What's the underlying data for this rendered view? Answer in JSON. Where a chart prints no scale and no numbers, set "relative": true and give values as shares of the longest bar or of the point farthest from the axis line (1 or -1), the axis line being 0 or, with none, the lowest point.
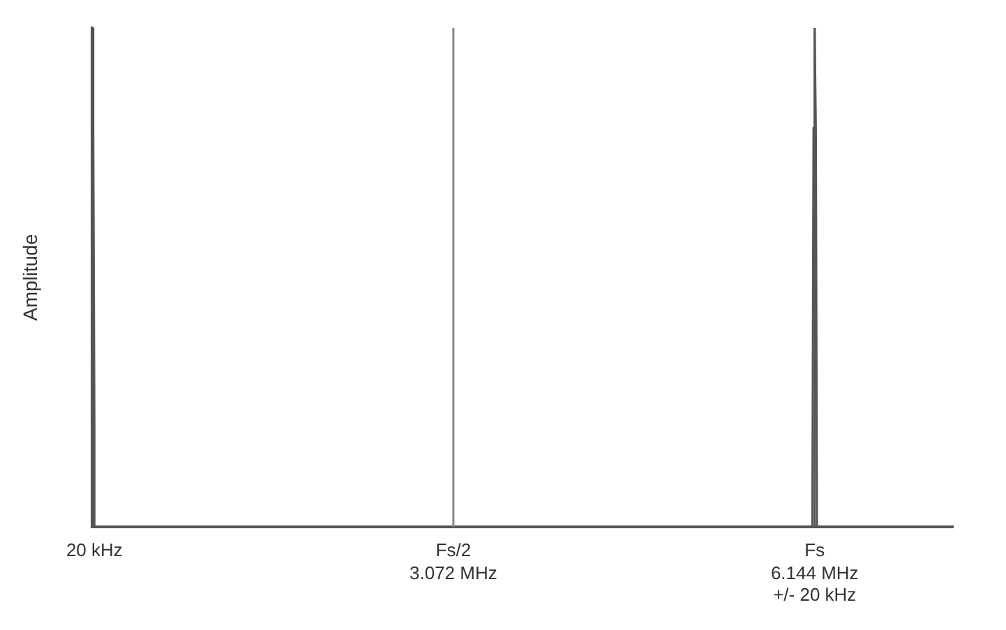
{
  "chart_data": {
    "type": "line",
    "relative": true,
    "ylabel": "Amplitude",
    "xlim": [
      0,
      7.32
    ],
    "xticks": [
      {
        "value": 3.072,
        "label": "3.072 MHz"
      },
      {
        "value": 6.144,
        "label": "6.144 MHz"
      }
    ],
    "annotations": [
      {
        "text": "20 kHz",
        "x": 0.02,
        "y": 0
      },
      {
        "text": "Fs/2",
        "x": 3.072,
        "y": 0
      },
      {
        "text": "Fs",
        "x": 6.144,
        "y": 0
      },
      "+/- 20 kHz"
    ],
    "series": [
      {
        "color": "#555555",
        "x": [
          0,
          0.01,
          0.02,
          0.02
        ],
        "values": [
          1,
          0.8,
          0.2,
          0
        ]
      },
      {
        "color": "#555555",
        "x": [
          6.124,
          6.134,
          6.144,
          6.154,
          6.164
        ],
        "values": [
          0,
          0.8,
          1,
          0.8,
          0
        ]
      }
    ],
    "ref_lines": [
      {
        "axis": "x",
        "value": 3.072,
        "color": "#888888"
      },
      {
        "axis": "x",
        "value": 6.144,
        "color": "#555555"
      }
    ],
    "legend": false,
    "marker": "none",
    "line_style": "solid"
  }
}
